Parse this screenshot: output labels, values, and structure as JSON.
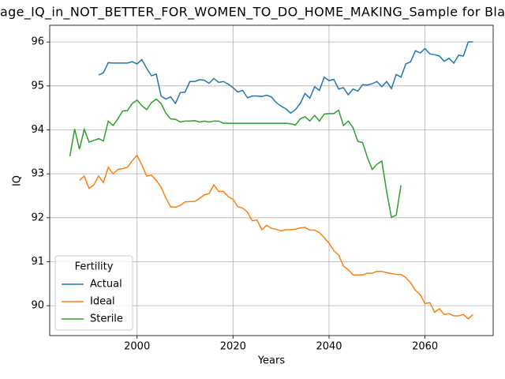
{
  "chart_data": {
    "type": "line",
    "title": "age_IQ_in_NOT_BETTER_FOR_WOMEN_TO_DO_HOME_MAKING_Sample for Bla",
    "x_label": "Years",
    "y_label": "IQ",
    "legend_title": "Fertility",
    "legend": "lower left",
    "grid": true,
    "x": [
      1986,
      1987,
      1988,
      1989,
      1990,
      1991,
      1992,
      1993,
      1994,
      1995,
      1996,
      1997,
      1998,
      1999,
      2000,
      2001,
      2002,
      2003,
      2004,
      2005,
      2006,
      2007,
      2008,
      2009,
      2010,
      2011,
      2012,
      2013,
      2014,
      2015,
      2016,
      2017,
      2018,
      2019,
      2020,
      2021,
      2022,
      2023,
      2024,
      2025,
      2026,
      2027,
      2028,
      2029,
      2030,
      2031,
      2032,
      2033,
      2034,
      2035,
      2036,
      2037,
      2038,
      2039,
      2040,
      2041,
      2042,
      2043,
      2044,
      2045,
      2046,
      2047,
      2048,
      2049,
      2050,
      2051,
      2052,
      2053,
      2054,
      2055,
      2056,
      2057,
      2058,
      2059,
      2060,
      2061,
      2062,
      2063,
      2064,
      2065,
      2066,
      2067,
      2068,
      2069,
      2070
    ],
    "series": [
      {
        "name": "Actual",
        "color": "#1f77b4",
        "values": [
          null,
          null,
          null,
          null,
          null,
          null,
          95.25,
          95.3,
          95.53,
          95.52,
          95.52,
          95.52,
          95.52,
          95.55,
          95.5,
          95.6,
          95.4,
          95.23,
          95.27,
          94.77,
          94.7,
          94.75,
          94.6,
          94.85,
          94.86,
          95.1,
          95.1,
          95.14,
          95.13,
          95.06,
          95.17,
          95.08,
          95.1,
          95.04,
          94.96,
          94.86,
          94.9,
          94.73,
          94.77,
          94.77,
          94.76,
          94.79,
          94.75,
          94.62,
          94.54,
          94.48,
          94.38,
          94.46,
          94.6,
          94.83,
          94.72,
          94.98,
          94.9,
          95.2,
          95.12,
          95.15,
          94.93,
          94.96,
          94.8,
          94.93,
          94.88,
          95.03,
          95.02,
          95.05,
          95.1,
          94.98,
          95.1,
          94.94,
          95.26,
          95.2,
          95.5,
          95.55,
          95.8,
          95.75,
          95.85,
          95.73,
          95.71,
          95.68,
          95.56,
          95.63,
          95.52,
          95.7,
          95.68,
          96.0,
          96.0
        ]
      },
      {
        "name": "Ideal",
        "color": "#ff7f0e",
        "values": [
          null,
          null,
          92.85,
          92.95,
          92.67,
          92.75,
          92.95,
          92.8,
          93.15,
          93.0,
          93.1,
          93.12,
          93.15,
          93.3,
          93.42,
          93.2,
          92.95,
          92.97,
          92.85,
          92.7,
          92.45,
          92.25,
          92.24,
          92.28,
          92.36,
          92.37,
          92.37,
          92.44,
          92.52,
          92.55,
          92.75,
          92.6,
          92.6,
          92.48,
          92.42,
          92.25,
          92.22,
          92.13,
          91.93,
          91.95,
          91.73,
          91.83,
          91.76,
          91.74,
          91.7,
          91.73,
          91.73,
          91.74,
          91.77,
          91.78,
          91.72,
          91.72,
          91.66,
          91.55,
          91.42,
          91.25,
          91.15,
          90.9,
          90.82,
          90.7,
          90.7,
          90.7,
          90.74,
          90.74,
          90.78,
          90.78,
          90.75,
          90.73,
          90.71,
          90.71,
          90.64,
          90.52,
          90.35,
          90.25,
          90.05,
          90.07,
          89.85,
          89.93,
          89.8,
          89.82,
          89.77,
          89.77,
          89.8,
          89.7,
          89.8
        ]
      },
      {
        "name": "Sterile",
        "color": "#2ca02c",
        "values": [
          93.4,
          94.02,
          93.56,
          94.01,
          93.72,
          93.76,
          93.8,
          93.75,
          94.2,
          94.1,
          94.25,
          94.43,
          94.44,
          94.6,
          94.68,
          94.55,
          94.46,
          94.62,
          94.7,
          94.6,
          94.38,
          94.25,
          94.24,
          94.18,
          94.2,
          94.2,
          94.21,
          94.18,
          94.2,
          94.18,
          94.2,
          94.2,
          94.15,
          94.15,
          94.15,
          94.15,
          94.15,
          94.15,
          94.15,
          94.15,
          94.15,
          94.15,
          94.15,
          94.15,
          94.15,
          94.15,
          94.14,
          94.11,
          94.25,
          94.3,
          94.2,
          94.33,
          94.2,
          94.36,
          94.37,
          94.37,
          94.45,
          94.1,
          94.2,
          94.05,
          93.74,
          93.71,
          93.37,
          93.1,
          93.22,
          93.29,
          92.6,
          92.01,
          92.06,
          92.74,
          null,
          null,
          null,
          null,
          null,
          null,
          null,
          null,
          null,
          null,
          null,
          null,
          null,
          null,
          null
        ]
      }
    ],
    "xlim": [
      1981.8,
      2074.2
    ],
    "xticks": [
      2000,
      2020,
      2040,
      2060
    ],
    "ylim": [
      89.32,
      96.38
    ],
    "yticks": [
      90,
      91,
      92,
      93,
      94,
      95,
      96
    ]
  }
}
